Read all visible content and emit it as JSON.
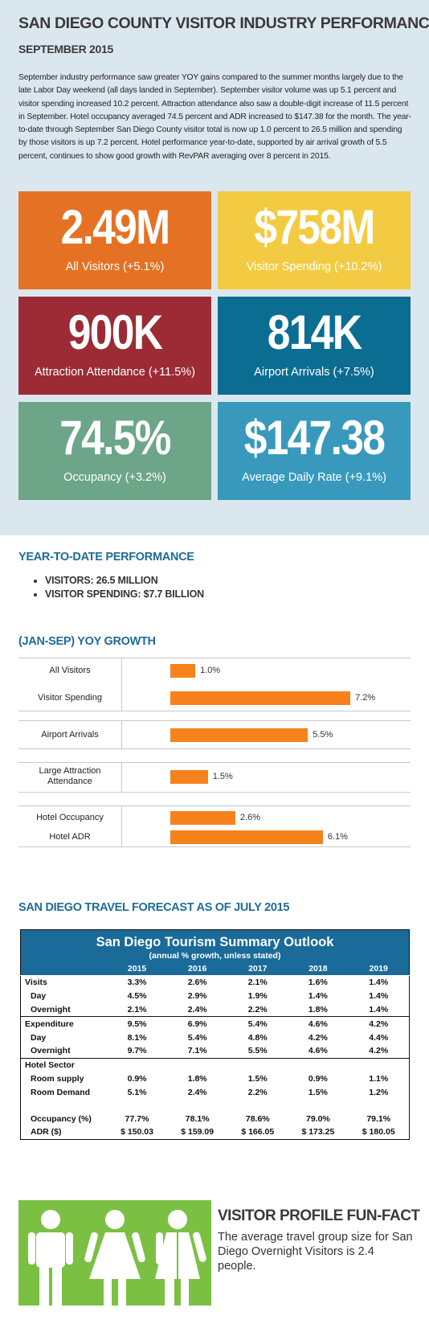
{
  "header": {
    "title": "SAN DIEGO COUNTY VISITOR INDUSTRY PERFORMANCE",
    "subtitle": "SEPTEMBER 2015",
    "summary": "September industry performance saw greater YOY gains compared to the summer months largely due to the late Labor Day weekend (all days landed in September). September visitor volume was up 5.1 percent and visitor spending increased 10.2 percent. Attraction attendance also saw a double-digit increase of 11.5 percent in September. Hotel occupancy averaged 74.5 percent and ADR increased to $147.38 for the month. The year-to-date through September San Diego County visitor total is now up 1.0 percent to 26.5 million and spending by those visitors is up 7.2 percent. Hotel performance year-to-date, supported by air arrival growth of 5.5 percent, continues to show good growth with RevPAR averaging over 8 percent in 2015."
  },
  "tiles": [
    {
      "value": "2.49M",
      "label": "All Visitors (+5.1%)",
      "color": "#e57224"
    },
    {
      "value": "$758M",
      "label": "Visitor Spending (+10.2%)",
      "color": "#f3cb42"
    },
    {
      "value": "900K",
      "label": "Attraction Attendance (+11.5%)",
      "color": "#9c2b36"
    },
    {
      "value": "814K",
      "label": "Airport Arrivals (+7.5%)",
      "color": "#0c6d93"
    },
    {
      "value": "74.5%",
      "label": "Occupancy (+3.2%)",
      "color": "#6da589"
    },
    {
      "value": "$147.38",
      "label": "Average Daily Rate (+9.1%)",
      "color": "#3899bd"
    }
  ],
  "ytd": {
    "title": "YEAR-TO-DATE PERFORMANCE",
    "items": [
      "VISITORS: 26.5 MILLION",
      "VISITOR SPENDING: $7.7 BILLION"
    ]
  },
  "chart_data": {
    "type": "bar",
    "orientation": "horizontal",
    "title": "(JAN-SEP) YOY GROWTH",
    "categories": [
      "All Visitors",
      "Visitor Spending",
      "Airport Arrivals",
      "Large Attraction Attendance",
      "Hotel Occupancy",
      "Hotel ADR"
    ],
    "values": [
      1.0,
      7.2,
      5.5,
      1.5,
      2.6,
      6.1
    ],
    "value_labels": [
      "1.0%",
      "7.2%",
      "5.5%",
      "1.5%",
      "2.6%",
      "6.1%"
    ],
    "color": "#f7821b",
    "xlim": [
      0,
      8
    ]
  },
  "forecast": {
    "title": "SAN DIEGO TRAVEL FORECAST AS OF JULY 2015",
    "table": {
      "title": "San Diego Tourism Summary Outlook",
      "subtitle": "(annual % growth, unless stated)",
      "columns": [
        "2015",
        "2016",
        "2017",
        "2018",
        "2019"
      ],
      "sections": [
        [
          {
            "label": "Visits",
            "values": [
              "3.3%",
              "2.6%",
              "2.1%",
              "1.6%",
              "1.4%"
            ]
          },
          {
            "label": "Day",
            "values": [
              "4.5%",
              "2.9%",
              "1.9%",
              "1.4%",
              "1.4%"
            ]
          },
          {
            "label": "Overnight",
            "values": [
              "2.1%",
              "2.4%",
              "2.2%",
              "1.8%",
              "1.4%"
            ]
          }
        ],
        [
          {
            "label": "Expenditure",
            "values": [
              "9.5%",
              "6.9%",
              "5.4%",
              "4.6%",
              "4.2%"
            ]
          },
          {
            "label": "Day",
            "values": [
              "8.1%",
              "5.4%",
              "4.8%",
              "4.2%",
              "4.4%"
            ]
          },
          {
            "label": "Overnight",
            "values": [
              "9.7%",
              "7.1%",
              "5.5%",
              "4.6%",
              "4.2%"
            ]
          }
        ],
        [
          {
            "label": "Hotel Sector"
          },
          {
            "label": "Room supply",
            "values": [
              "0.9%",
              "1.8%",
              "1.5%",
              "0.9%",
              "1.1%"
            ]
          },
          {
            "label": "Room Demand",
            "values": [
              "5.1%",
              "2.4%",
              "2.2%",
              "1.5%",
              "1.2%"
            ]
          },
          {
            "label": "Occupancy (%)",
            "values": [
              "77.7%",
              "78.1%",
              "78.6%",
              "79.0%",
              "79.1%"
            ]
          },
          {
            "label": "ADR ($)",
            "values": [
              "$ 150.03",
              "$ 159.09",
              "$ 166.05",
              "$ 173.25",
              "$ 180.05"
            ]
          }
        ]
      ]
    }
  },
  "fun_fact": {
    "title": "VISITOR PROFILE FUN-FACT",
    "text": "The average travel group size for San Diego Overnight Visitors is 2.4 people."
  }
}
